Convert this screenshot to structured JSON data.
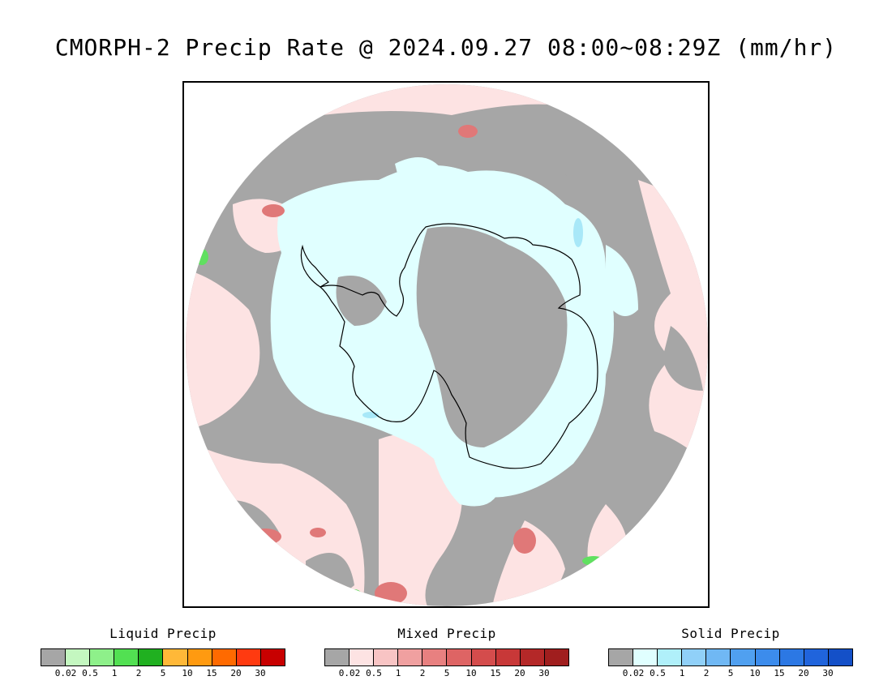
{
  "title": "CMORPH-2 Precip Rate @ 2024.09.27 08:00~08:29Z (mm/hr)",
  "map": {
    "colors": {
      "none": "#a6a6a6",
      "mixed_light": "#fde3e3",
      "mixed_mid": "#f4b6b6",
      "mixed_high": "#e07878",
      "solid_light": "#e0ffff",
      "solid_mid": "#a8e8f8",
      "liquid_light": "#bff7b8",
      "liquid_mid": "#60e060",
      "coast": "#000000"
    }
  },
  "legends": [
    {
      "title": "Liquid Precip",
      "colors": [
        "#a6a6a6",
        "#c4f7c0",
        "#8ef08a",
        "#52e052",
        "#20b020",
        "#ffb838",
        "#ff9a10",
        "#ff6a00",
        "#ff3a10",
        "#c80000"
      ],
      "ticks": [
        "0.02",
        "0.5",
        "1",
        "2",
        "5",
        "10",
        "15",
        "20",
        "30"
      ]
    },
    {
      "title": "Mixed Precip",
      "colors": [
        "#a6a6a6",
        "#fde3e3",
        "#f8c4c4",
        "#f0a0a0",
        "#e88080",
        "#de6464",
        "#d44c4c",
        "#c83838",
        "#b42828",
        "#a01e1e"
      ],
      "ticks": [
        "0.02",
        "0.5",
        "1",
        "2",
        "5",
        "10",
        "15",
        "20",
        "30"
      ]
    },
    {
      "title": "Solid Precip",
      "colors": [
        "#a6a6a6",
        "#e0ffff",
        "#b0f0fa",
        "#90d0f8",
        "#70b8f4",
        "#50a0f0",
        "#3c8cec",
        "#2c78e4",
        "#2064dc",
        "#1450c8"
      ],
      "ticks": [
        "0.02",
        "0.5",
        "1",
        "2",
        "5",
        "10",
        "15",
        "20",
        "30"
      ]
    }
  ]
}
